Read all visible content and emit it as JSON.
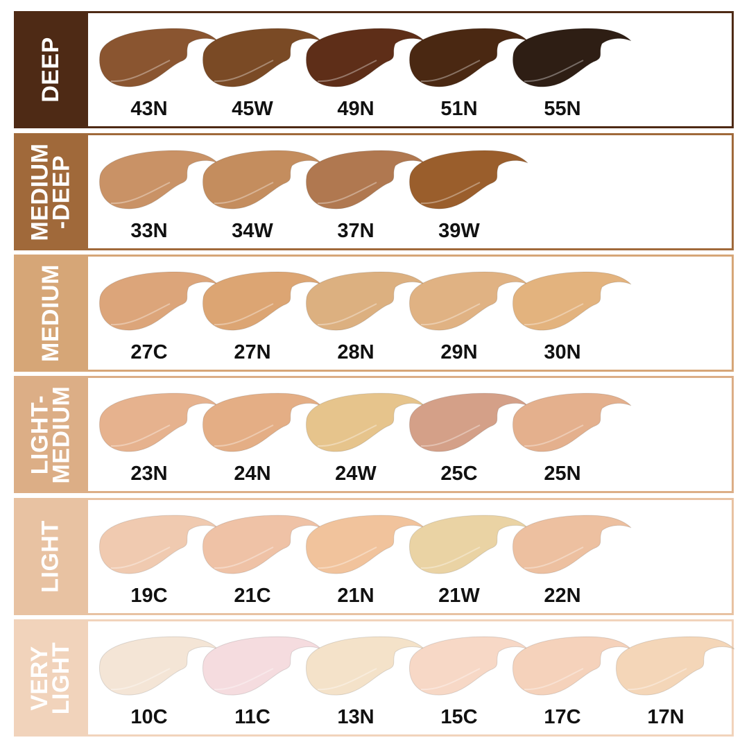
{
  "categories": [
    {
      "name": "DEEP",
      "color": "#4e2a15",
      "shades": [
        {
          "code": "43N",
          "color": "#8a5530"
        },
        {
          "code": "45W",
          "color": "#7a4a25"
        },
        {
          "code": "49N",
          "color": "#5e2e18"
        },
        {
          "code": "51N",
          "color": "#4a2812"
        },
        {
          "code": "55N",
          "color": "#2e1e14"
        }
      ]
    },
    {
      "name": "MEDIUM\n-DEEP",
      "color": "#a0693a",
      "shades": [
        {
          "code": "33N",
          "color": "#c99266"
        },
        {
          "code": "34W",
          "color": "#c48d5e"
        },
        {
          "code": "37N",
          "color": "#b07850"
        },
        {
          "code": "39W",
          "color": "#9a5e2c"
        }
      ]
    },
    {
      "name": "MEDIUM",
      "color": "#d6a677",
      "shades": [
        {
          "code": "27C",
          "color": "#dca57a"
        },
        {
          "code": "27N",
          "color": "#dca573"
        },
        {
          "code": "28N",
          "color": "#dcb080"
        },
        {
          "code": "29N",
          "color": "#e0b283"
        },
        {
          "code": "30N",
          "color": "#e3b37e"
        }
      ]
    },
    {
      "name": "LIGHT-\nMEDIUM",
      "color": "#dcae86",
      "shades": [
        {
          "code": "23N",
          "color": "#e6b28e"
        },
        {
          "code": "24N",
          "color": "#e4ae85"
        },
        {
          "code": "24W",
          "color": "#e6c48c"
        },
        {
          "code": "25C",
          "color": "#d4a088"
        },
        {
          "code": "25N",
          "color": "#e4b08d"
        }
      ]
    },
    {
      "name": "LIGHT",
      "color": "#e8c2a2",
      "shades": [
        {
          "code": "19C",
          "color": "#f0cab0"
        },
        {
          "code": "21C",
          "color": "#efc2a6"
        },
        {
          "code": "21N",
          "color": "#f1c39c"
        },
        {
          "code": "21W",
          "color": "#ead3a4"
        },
        {
          "code": "22N",
          "color": "#edc0a0"
        }
      ]
    },
    {
      "name": "VERY\nLIGHT",
      "color": "#f1d3bb",
      "shades": [
        {
          "code": "10C",
          "color": "#f4e5d6"
        },
        {
          "code": "11C",
          "color": "#f5dcdf"
        },
        {
          "code": "13N",
          "color": "#f4e2c9"
        },
        {
          "code": "15C",
          "color": "#f7d8c6"
        },
        {
          "code": "17C",
          "color": "#f5d2bb"
        },
        {
          "code": "17N",
          "color": "#f4d6b8"
        }
      ]
    }
  ]
}
